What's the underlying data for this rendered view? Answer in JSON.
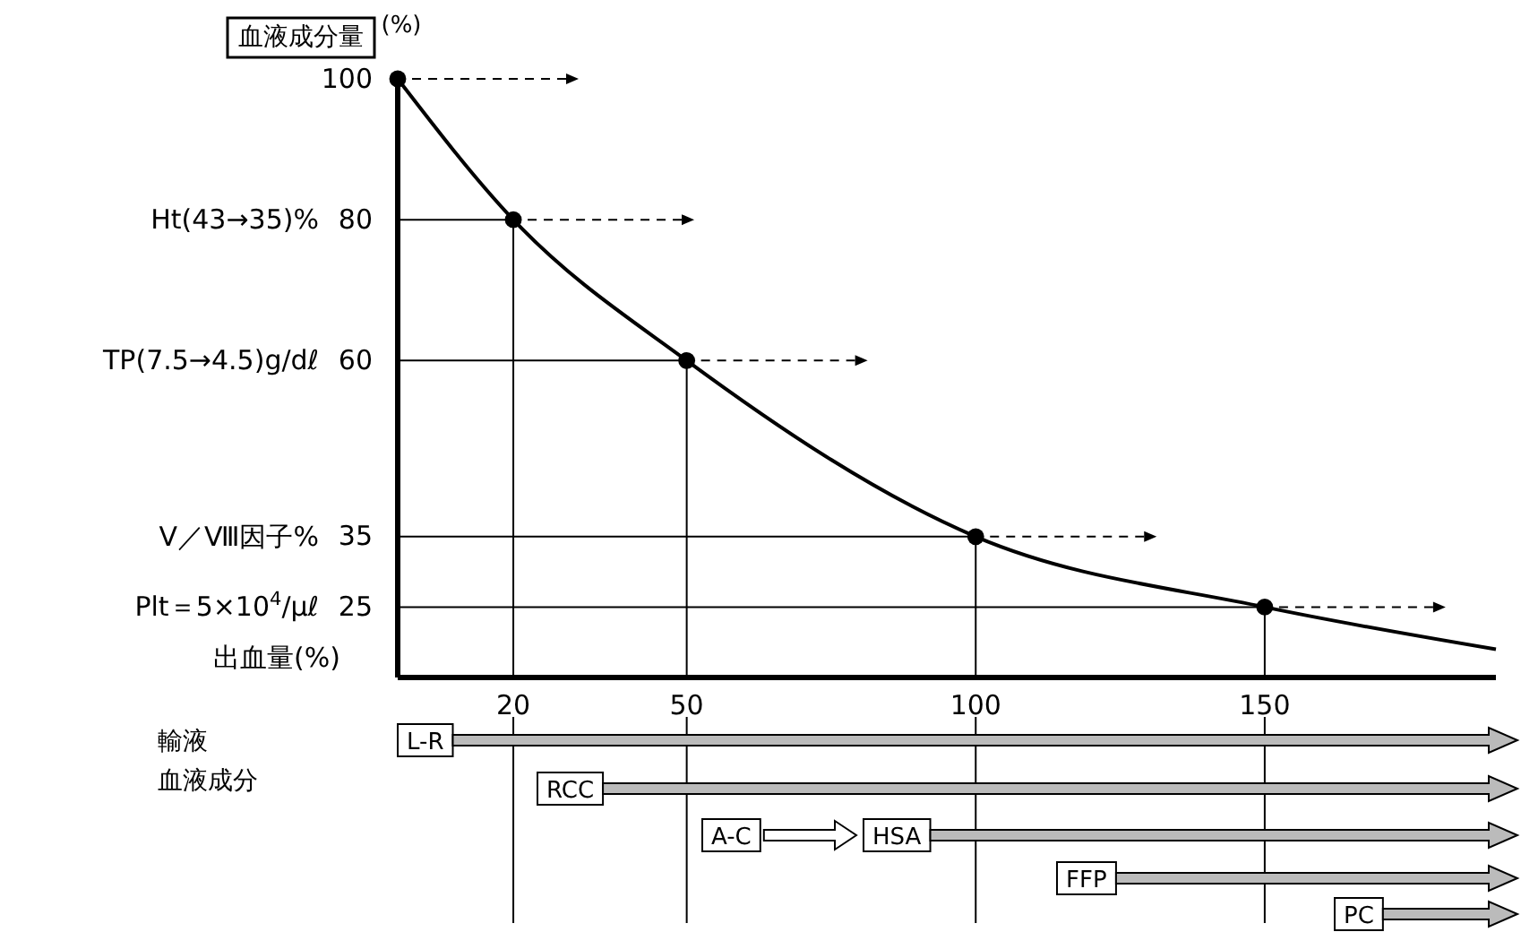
{
  "chart_data": {
    "type": "line",
    "title": "血液成分量",
    "ylabel": "(%)",
    "xlabel": "出血量(%)",
    "xlim": [
      0,
      190
    ],
    "ylim": [
      15,
      100
    ],
    "xticks": [
      20,
      50,
      100,
      150
    ],
    "yticks": [
      100,
      80,
      60,
      35,
      25
    ],
    "marker": "circle",
    "series": [
      {
        "color": "#000000",
        "marker": "none",
        "x": [
          0,
          20,
          50,
          100,
          150,
          190
        ],
        "values": [
          100,
          80,
          60,
          35,
          25,
          19
        ]
      },
      {
        "type": "scatter",
        "color": "#000000",
        "x": [
          0,
          20,
          50,
          100,
          150
        ],
        "values": [
          100,
          80,
          60,
          35,
          25
        ]
      }
    ],
    "ref_lines": [
      {
        "axis": "y",
        "value": 80
      },
      {
        "axis": "y",
        "value": 60
      },
      {
        "axis": "y",
        "value": 35
      },
      {
        "axis": "y",
        "value": 25
      },
      {
        "axis": "x",
        "value": 20
      },
      {
        "axis": "x",
        "value": 50
      },
      {
        "axis": "x",
        "value": 100
      },
      {
        "axis": "x",
        "value": 150
      }
    ],
    "annotations": [
      "Ht(43→35)%",
      "TP(7.5→4.5)g/dℓ",
      "Ⅴ／Ⅷ因子%",
      "Plt＝5×10$^{4}$/μℓ",
      "輸液",
      "血液成分",
      "L-R",
      "RCC",
      "A-C",
      "HSA",
      "FFP",
      "PC"
    ]
  }
}
